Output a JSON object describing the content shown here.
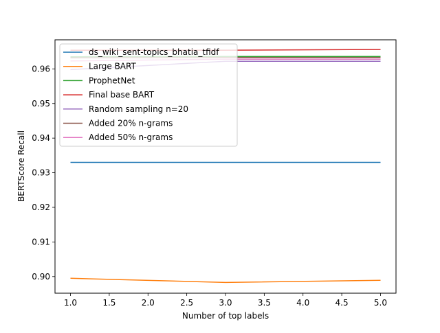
{
  "chart_data": {
    "type": "line",
    "xlabel": "Number of top labels",
    "ylabel": "BERTScore Recall",
    "x": [
      1,
      3,
      5
    ],
    "xlim": [
      0.8,
      5.2
    ],
    "ylim": [
      0.8952,
      0.9684
    ],
    "xticks": [
      1.0,
      1.5,
      2.0,
      2.5,
      3.0,
      3.5,
      4.0,
      4.5,
      5.0
    ],
    "xtick_labels": [
      "1.0",
      "1.5",
      "2.0",
      "2.5",
      "3.0",
      "3.5",
      "4.0",
      "4.5",
      "5.0"
    ],
    "yticks": [
      0.9,
      0.91,
      0.92,
      0.93,
      0.94,
      0.95,
      0.96
    ],
    "ytick_labels": [
      "0.90",
      "0.91",
      "0.92",
      "0.93",
      "0.94",
      "0.95",
      "0.96"
    ],
    "grid": false,
    "legend_position": "upper-left",
    "series": [
      {
        "name": "ds_wiki_sent-topics_bhatia_tfidf",
        "color": "#1f77b4",
        "values": [
          0.933,
          0.933,
          0.933
        ]
      },
      {
        "name": "Large BART",
        "color": "#ff7f0e",
        "values": [
          0.8995,
          0.8983,
          0.8989
        ]
      },
      {
        "name": "ProphetNet",
        "color": "#2ca02c",
        "values": [
          0.9635,
          0.9636,
          0.9636
        ]
      },
      {
        "name": "Final base BART",
        "color": "#d62728",
        "values": [
          0.9654,
          0.9654,
          0.9656
        ]
      },
      {
        "name": "Random sampling n=20",
        "color": "#9467bd",
        "values": [
          0.9598,
          0.9622,
          0.9622
        ]
      },
      {
        "name": "Added 20% n-grams",
        "color": "#8c564b",
        "values": [
          0.9632,
          0.9633,
          0.9633
        ]
      },
      {
        "name": "Added 50% n-grams",
        "color": "#e377c2",
        "values": [
          0.9623,
          0.9628,
          0.9628
        ]
      }
    ]
  }
}
